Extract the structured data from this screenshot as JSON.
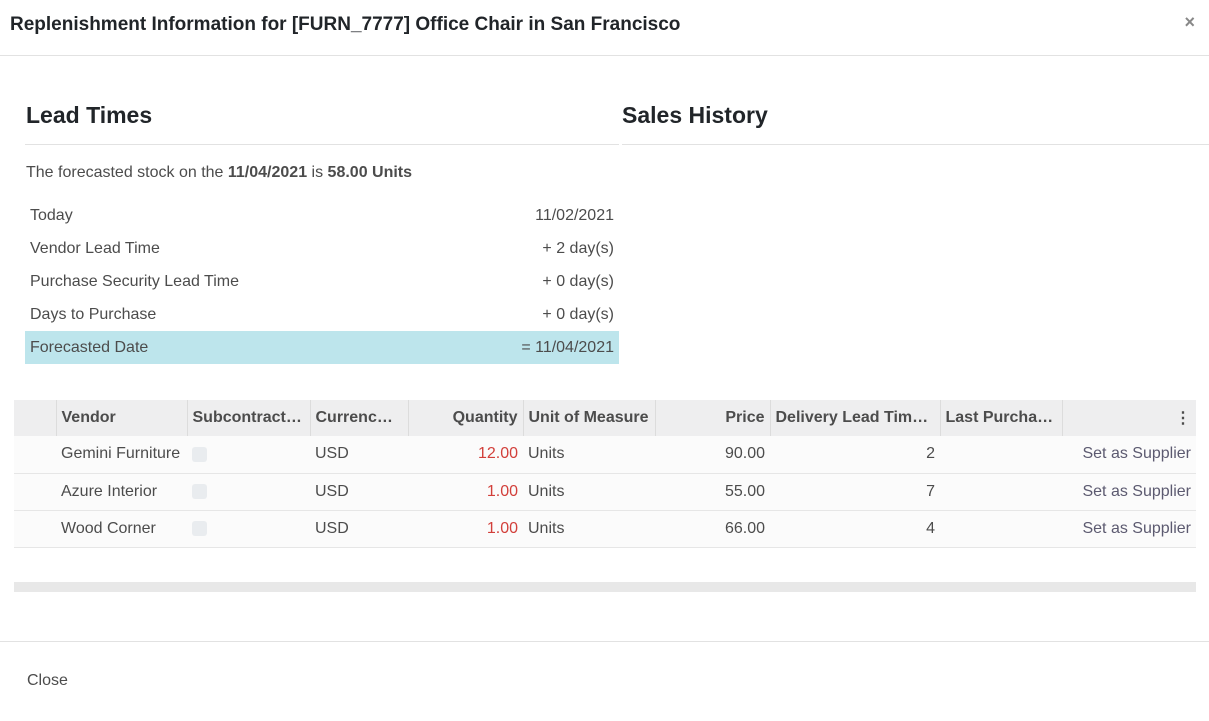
{
  "dialog": {
    "title": "Replenishment Information for [FURN_7777] Office Chair in San Francisco",
    "close_icon": "×",
    "close_label": "Close"
  },
  "lead_times": {
    "heading": "Lead Times",
    "forecast_prefix": "The forecasted stock on the ",
    "forecast_date": "11/04/2021",
    "forecast_mid": " is ",
    "forecast_qty": "58.00 Units",
    "rows": [
      {
        "label": "Today",
        "value": "11/02/2021"
      },
      {
        "label": "Vendor Lead Time",
        "value": "+ 2 day(s)"
      },
      {
        "label": "Purchase Security Lead Time",
        "value": "+ 0 day(s)"
      },
      {
        "label": "Days to Purchase",
        "value": "+ 0 day(s)"
      },
      {
        "label": "Forecasted Date",
        "value": "= 11/04/2021"
      }
    ]
  },
  "sales_history": {
    "heading": "Sales History"
  },
  "table": {
    "columns": [
      "Vendor",
      "Subcontract…",
      "Currenc…",
      "Quantity",
      "Unit of Measure",
      "Price",
      "Delivery Lead Tim…",
      "Last Purcha…"
    ],
    "rows": [
      {
        "vendor": "Gemini Furniture",
        "currency": "USD",
        "quantity": "12.00",
        "uom": "Units",
        "price": "90.00",
        "delay": "2",
        "action": "Set as Supplier"
      },
      {
        "vendor": "Azure Interior",
        "currency": "USD",
        "quantity": "1.00",
        "uom": "Units",
        "price": "55.00",
        "delay": "7",
        "action": "Set as Supplier"
      },
      {
        "vendor": "Wood Corner",
        "currency": "USD",
        "quantity": "1.00",
        "uom": "Units",
        "price": "66.00",
        "delay": "4",
        "action": "Set as Supplier"
      }
    ]
  },
  "colors": {
    "highlight": "#bde5ec",
    "quantity": "#d23f3a"
  }
}
